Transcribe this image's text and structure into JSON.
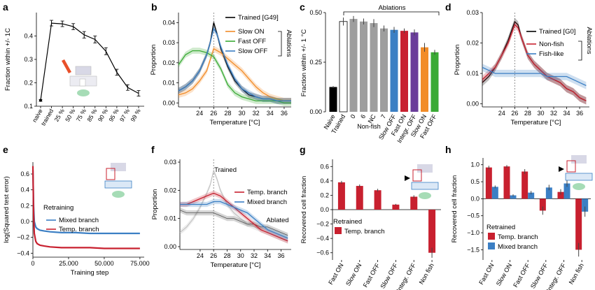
{
  "colors": {
    "black": "#000000",
    "orange": "#f28c28",
    "green": "#3aaa35",
    "blue": "#3b7fc4",
    "red": "#c8202f",
    "gray": "#9e9e9e",
    "lightgray": "#b5b5b5",
    "darkgray": "#555555"
  },
  "chart_data": [
    {
      "panel": "a",
      "type": "line",
      "ylabel": "Fraction within +/- 1C",
      "categories": [
        "naive",
        "trained",
        "25 %",
        "50 %",
        "75 %",
        "85 %",
        "90 %",
        "95 %",
        "97 %",
        "99 %"
      ],
      "series": [
        {
          "values": [
            0.125,
            0.455,
            0.452,
            0.44,
            0.405,
            0.385,
            0.335,
            0.245,
            0.18,
            0.155
          ],
          "errors": [
            0.004,
            0.012,
            0.012,
            0.013,
            0.014,
            0.015,
            0.015,
            0.013,
            0.012,
            0.012
          ]
        }
      ],
      "ylim": [
        0.1,
        0.5
      ],
      "yticks": [
        0.1,
        0.2,
        0.3,
        0.4
      ]
    },
    {
      "panel": "b",
      "type": "line",
      "xlabel": "Temperature [°C]",
      "ylabel": "Proportion",
      "xlim": [
        21,
        37
      ],
      "ylim": [
        -0.002,
        0.045
      ],
      "xticks": [
        24,
        26,
        28,
        30,
        32,
        34,
        36
      ],
      "yticks": [
        0.0,
        0.01,
        0.02,
        0.03,
        0.04
      ],
      "yticklabels": [
        "0.00",
        "0.01",
        "0.02",
        "0.03",
        "0.04"
      ],
      "vline": 26,
      "legend_group_label": "Ablations",
      "series": [
        {
          "name": "Trained [G49]",
          "color": "black",
          "x": [
            21,
            22,
            23,
            24,
            25,
            25.5,
            26,
            26.5,
            27,
            28,
            29,
            30,
            31,
            32,
            33,
            34,
            35,
            36,
            37
          ],
          "y": [
            0.006,
            0.008,
            0.011,
            0.016,
            0.024,
            0.03,
            0.04,
            0.034,
            0.027,
            0.018,
            0.011,
            0.007,
            0.004,
            0.003,
            0.002,
            0.002,
            0.001,
            0.001,
            0.001
          ]
        },
        {
          "name": "Slow ON",
          "color": "orange",
          "x": [
            21,
            22,
            23,
            24,
            25,
            26,
            27,
            28,
            29,
            30,
            31,
            32,
            33,
            34,
            35,
            36,
            37
          ],
          "y": [
            0.004,
            0.005,
            0.007,
            0.011,
            0.016,
            0.027,
            0.025,
            0.022,
            0.019,
            0.016,
            0.012,
            0.008,
            0.005,
            0.003,
            0.002,
            0.001,
            0.001
          ]
        },
        {
          "name": "Fast OFF",
          "color": "green",
          "x": [
            21,
            22,
            23,
            24,
            25,
            26,
            27,
            28,
            29,
            30,
            31,
            32,
            33,
            34,
            35,
            36,
            37
          ],
          "y": [
            0.019,
            0.024,
            0.026,
            0.026,
            0.025,
            0.023,
            0.017,
            0.009,
            0.005,
            0.003,
            0.002,
            0.001,
            0.001,
            0.001,
            0.001,
            0.0,
            0.0
          ]
        },
        {
          "name": "Slow OFF",
          "color": "blue",
          "x": [
            21,
            22,
            23,
            24,
            25,
            25.5,
            26,
            26.5,
            27,
            28,
            29,
            30,
            31,
            32,
            33,
            34,
            35,
            36,
            37
          ],
          "y": [
            0.006,
            0.008,
            0.011,
            0.016,
            0.024,
            0.03,
            0.037,
            0.034,
            0.028,
            0.019,
            0.012,
            0.007,
            0.005,
            0.003,
            0.002,
            0.002,
            0.001,
            0.001,
            0.001
          ]
        }
      ]
    },
    {
      "panel": "c",
      "type": "bar",
      "ylabel": "Fraction within +/- 1 °C",
      "ylim": [
        0,
        0.5
      ],
      "yticks": [
        0.0,
        0.25,
        0.5
      ],
      "yticklabels": [
        "0.00",
        "0.25",
        "0.50"
      ],
      "group_label": "Ablations",
      "subgroup_label": "Non-fish",
      "categories": [
        "Naive",
        "Trained",
        "0",
        "6",
        "NC",
        "7",
        "Slow OFF",
        "Fast ON",
        "Integr. OFF",
        "Slow ON",
        "Fast OFF"
      ],
      "values": [
        0.125,
        0.455,
        0.468,
        0.455,
        0.447,
        0.42,
        0.413,
        0.408,
        0.4,
        0.325,
        0.3
      ],
      "errors": [
        0.005,
        0.02,
        0.015,
        0.015,
        0.02,
        0.015,
        0.015,
        0.012,
        0.015,
        0.022,
        0.012
      ],
      "bar_colors": [
        "black",
        "white",
        "gray",
        "gray",
        "gray",
        "gray",
        "blue",
        "red",
        "purple",
        "orange",
        "green"
      ]
    },
    {
      "panel": "d",
      "type": "line",
      "xlabel": "Temperature [°C]",
      "ylabel": "Proportion",
      "xlim": [
        21,
        37.5
      ],
      "ylim": [
        -0.001,
        0.03
      ],
      "xticks": [
        24,
        26,
        28,
        30,
        32,
        34,
        36
      ],
      "yticks": [
        0.0,
        0.01,
        0.02,
        0.03
      ],
      "yticklabels": [
        "0.00",
        "0.01",
        "0.02",
        "0.03"
      ],
      "vline": 26,
      "legend_group_label": "Ablations",
      "series": [
        {
          "name": "Trained [G0]",
          "color": "black",
          "x": [
            21,
            22,
            23,
            24,
            25,
            25.5,
            26,
            26.5,
            27,
            28,
            29,
            30,
            31,
            32,
            33,
            34,
            35,
            36,
            37
          ],
          "y": [
            0.007,
            0.009,
            0.012,
            0.016,
            0.021,
            0.024,
            0.027,
            0.026,
            0.022,
            0.016,
            0.013,
            0.011,
            0.009,
            0.008,
            0.007,
            0.005,
            0.004,
            0.002,
            0.001
          ]
        },
        {
          "name": "Non-fish",
          "color": "red",
          "x": [
            21,
            22,
            23,
            24,
            25,
            25.5,
            26,
            26.5,
            27,
            28,
            29,
            30,
            31,
            32,
            33,
            34,
            35,
            36,
            37
          ],
          "y": [
            0.008,
            0.01,
            0.012,
            0.016,
            0.02,
            0.023,
            0.026,
            0.025,
            0.022,
            0.016,
            0.013,
            0.011,
            0.009,
            0.008,
            0.007,
            0.005,
            0.004,
            0.002,
            0.001
          ]
        },
        {
          "name": "Fish-like",
          "color": "blue",
          "x": [
            21,
            22,
            23,
            24,
            25,
            26,
            27,
            28,
            29,
            30,
            31,
            32,
            33,
            34,
            35,
            36,
            37
          ],
          "y": [
            0.012,
            0.011,
            0.01,
            0.01,
            0.01,
            0.01,
            0.01,
            0.01,
            0.01,
            0.01,
            0.009,
            0.009,
            0.009,
            0.009,
            0.008,
            0.007,
            0.006
          ]
        }
      ]
    },
    {
      "panel": "e",
      "type": "line",
      "xlabel": "Training step",
      "ylabel": "log(Squared test error)",
      "xlim": [
        0,
        78000
      ],
      "ylim": [
        -0.45,
        0.75
      ],
      "xticks": [
        0,
        25000,
        50000,
        75000
      ],
      "xticklabels": [
        "0",
        "25.000",
        "50.000",
        "75.000"
      ],
      "yticks": [
        -0.4,
        -0.2,
        0.0,
        0.2,
        0.4,
        0.6
      ],
      "yticklabels": [
        "−0.4",
        "−0.2",
        "0.0",
        "0.2",
        "0.4",
        "0.6"
      ],
      "legend_title": "Retraining",
      "series": [
        {
          "name": "Mixed branch",
          "color": "blue",
          "x": [
            0,
            500,
            1000,
            2000,
            3000,
            5000,
            8000,
            12000,
            20000,
            30000,
            40000,
            50000,
            60000,
            70000,
            75000
          ],
          "y": [
            0.65,
            0.2,
            0.0,
            -0.07,
            -0.09,
            -0.11,
            -0.12,
            -0.13,
            -0.14,
            -0.14,
            -0.15,
            -0.15,
            -0.15,
            -0.15,
            -0.15
          ]
        },
        {
          "name": "Temp. branch",
          "color": "red",
          "x": [
            0,
            500,
            1000,
            2000,
            3000,
            5000,
            8000,
            12000,
            20000,
            30000,
            40000,
            50000,
            60000,
            70000,
            75000
          ],
          "y": [
            0.7,
            0.1,
            -0.15,
            -0.25,
            -0.28,
            -0.3,
            -0.31,
            -0.32,
            -0.33,
            -0.33,
            -0.33,
            -0.34,
            -0.34,
            -0.34,
            -0.34
          ]
        }
      ]
    },
    {
      "panel": "f",
      "type": "line",
      "xlabel": "Temperature [°C]",
      "ylabel": "Proportion",
      "xlim": [
        21,
        37.5
      ],
      "ylim": [
        -0.001,
        0.031
      ],
      "xticks": [
        24,
        26,
        28,
        30,
        32,
        34,
        36
      ],
      "yticks": [
        0.0,
        0.01,
        0.02,
        0.03
      ],
      "yticklabels": [
        "0.00",
        "0.01",
        "0.02",
        "0.03"
      ],
      "vline": 26,
      "annotations": [
        "Trained",
        "Ablated"
      ],
      "series": [
        {
          "name": "Trained",
          "color": "lightgray",
          "x": [
            21,
            22,
            23,
            24,
            25,
            25.5,
            26,
            26.5,
            27,
            28,
            29,
            30,
            31,
            32,
            33,
            34,
            35,
            36,
            37
          ],
          "y": [
            0.005,
            0.007,
            0.01,
            0.014,
            0.019,
            0.022,
            0.027,
            0.024,
            0.02,
            0.015,
            0.012,
            0.01,
            0.008,
            0.007,
            0.006,
            0.005,
            0.004,
            0.003,
            0.002
          ]
        },
        {
          "name": "Ablated",
          "color": "darkgray",
          "x": [
            21,
            22,
            23,
            24,
            25,
            26,
            27,
            28,
            29,
            30,
            31,
            32,
            33,
            34,
            35,
            36,
            37
          ],
          "y": [
            0.013,
            0.012,
            0.012,
            0.012,
            0.012,
            0.012,
            0.011,
            0.01,
            0.01,
            0.009,
            0.008,
            0.008,
            0.007,
            0.007,
            0.006,
            0.005,
            0.004
          ]
        },
        {
          "name": "Temp. branch",
          "color": "red",
          "x": [
            21,
            22,
            23,
            24,
            25,
            26,
            27,
            28,
            29,
            30,
            31,
            32,
            33,
            34,
            35,
            36,
            37
          ],
          "y": [
            0.015,
            0.015,
            0.016,
            0.017,
            0.018,
            0.019,
            0.018,
            0.016,
            0.014,
            0.012,
            0.01,
            0.008,
            0.006,
            0.005,
            0.004,
            0.003,
            0.002
          ]
        },
        {
          "name": "Mixed branch",
          "color": "blue",
          "x": [
            21,
            22,
            23,
            24,
            25,
            26,
            27,
            28,
            29,
            30,
            31,
            32,
            33,
            34,
            35,
            36,
            37
          ],
          "y": [
            0.015,
            0.015,
            0.015,
            0.015,
            0.015,
            0.016,
            0.016,
            0.015,
            0.014,
            0.013,
            0.012,
            0.01,
            0.008,
            0.006,
            0.005,
            0.004,
            0.003
          ]
        }
      ]
    },
    {
      "panel": "g",
      "type": "bar",
      "ylabel": "Recovered cell fraction",
      "ylim": [
        -0.7,
        0.7
      ],
      "yticks": [
        -0.6,
        -0.4,
        -0.2,
        0.0,
        0.2,
        0.4,
        0.6
      ],
      "yticklabels": [
        "−0.6",
        "−0.4",
        "−0.2",
        "0.0",
        "0.2",
        "0.4",
        "0.6"
      ],
      "legend_title": "Retrained",
      "categories": [
        "Fast ON",
        "Slow ON",
        "Fast OFF",
        "Slow OFF",
        "Integr. OFF",
        "Non fish"
      ],
      "series": [
        {
          "name": "Temp. branch",
          "color": "red",
          "values": [
            0.38,
            0.33,
            0.27,
            0.07,
            0.18,
            -0.6
          ],
          "errors": [
            0.02,
            0.02,
            0.02,
            0.01,
            0.02,
            0.07
          ]
        }
      ]
    },
    {
      "panel": "h",
      "type": "bar",
      "ylabel": "Recovered cell fraction",
      "ylim": [
        -1.8,
        1.2
      ],
      "yticks": [
        -1.5,
        -1.0,
        -0.5,
        0.0,
        0.5,
        1.0
      ],
      "yticklabels": [
        "−1.5",
        "−1.0",
        "−0.5",
        "0.0",
        "0.5",
        "1.0"
      ],
      "legend_title": "Retrained",
      "categories": [
        "Fast ON",
        "Slow ON",
        "Fast OFF",
        "Slow OFF",
        "Integr. OFF",
        "Non fish"
      ],
      "series": [
        {
          "name": "Temp. branch",
          "color": "red",
          "values": [
            0.92,
            0.95,
            0.8,
            -0.35,
            0.2,
            -1.5
          ],
          "errors": [
            0.05,
            0.04,
            0.07,
            0.12,
            0.08,
            0.2
          ]
        },
        {
          "name": "Mixed branch",
          "color": "blue",
          "values": [
            0.35,
            0.1,
            0.18,
            0.33,
            0.45,
            -0.38
          ],
          "errors": [
            0.04,
            0.03,
            0.05,
            0.08,
            0.1,
            0.15
          ]
        }
      ]
    }
  ],
  "labels": {
    "panel_letters": [
      "a",
      "b",
      "c",
      "d",
      "e",
      "f",
      "g",
      "h"
    ]
  }
}
